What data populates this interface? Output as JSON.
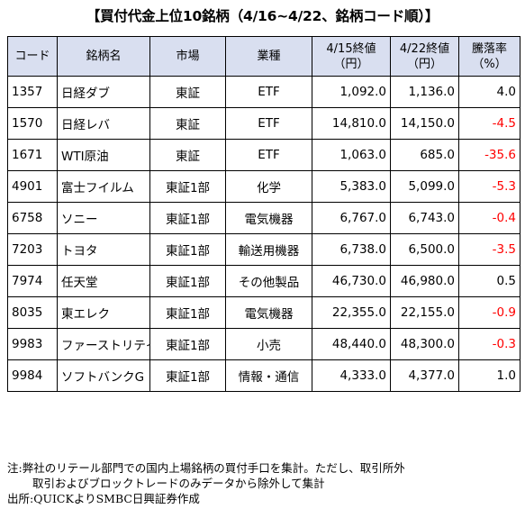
{
  "title": "【買付代金上位10銘柄（4/16~4/22、銘柄コード順）】",
  "headers": {
    "code": "コード",
    "name": "銘柄名",
    "market": "市場",
    "industry": "業種",
    "close_0415_line1": "4/15終値",
    "close_0415_line2": "（円）",
    "close_0422_line1": "4/22終値",
    "close_0422_line2": "（円）",
    "change_line1": "騰落率",
    "change_line2": "（%）"
  },
  "rows": [
    {
      "code": "1357",
      "name": "日経ダブ",
      "market": "東証",
      "industry": "ETF",
      "close_0415": "1,092.0",
      "close_0422": "1,136.0",
      "change": "4.0",
      "negative": false
    },
    {
      "code": "1570",
      "name": "日経レバ",
      "market": "東証",
      "industry": "ETF",
      "close_0415": "14,810.0",
      "close_0422": "14,150.0",
      "change": "-4.5",
      "negative": true
    },
    {
      "code": "1671",
      "name": "WTI原油",
      "market": "東証",
      "industry": "ETF",
      "close_0415": "1,063.0",
      "close_0422": "685.0",
      "change": "-35.6",
      "negative": true
    },
    {
      "code": "4901",
      "name": "富士フイルム",
      "market": "東証1部",
      "industry": "化学",
      "close_0415": "5,383.0",
      "close_0422": "5,099.0",
      "change": "-5.3",
      "negative": true
    },
    {
      "code": "6758",
      "name": "ソニー",
      "market": "東証1部",
      "industry": "電気機器",
      "close_0415": "6,767.0",
      "close_0422": "6,743.0",
      "change": "-0.4",
      "negative": true
    },
    {
      "code": "7203",
      "name": "トヨタ",
      "market": "東証1部",
      "industry": "輸送用機器",
      "close_0415": "6,738.0",
      "close_0422": "6,500.0",
      "change": "-3.5",
      "negative": true
    },
    {
      "code": "7974",
      "name": "任天堂",
      "market": "東証1部",
      "industry": "その他製品",
      "close_0415": "46,730.0",
      "close_0422": "46,980.0",
      "change": "0.5",
      "negative": false
    },
    {
      "code": "8035",
      "name": "東エレク",
      "market": "東証1部",
      "industry": "電気機器",
      "close_0415": "22,355.0",
      "close_0422": "22,155.0",
      "change": "-0.9",
      "negative": true
    },
    {
      "code": "9983",
      "name": "ファーストリテイ",
      "market": "東証1部",
      "industry": "小売",
      "close_0415": "48,440.0",
      "close_0422": "48,300.0",
      "change": "-0.3",
      "negative": true
    },
    {
      "code": "9984",
      "name": "ソフトバンクG",
      "market": "東証1部",
      "industry": "情報・通信",
      "close_0415": "4,333.0",
      "close_0422": "4,377.0",
      "change": "1.0",
      "negative": false
    }
  ],
  "notes": {
    "line1": "注:弊社のリテール部門での国内上場銘柄の買付手口を集計。ただし、取引所外",
    "line2": "取引およびブロックトレードのみデータから除外して集計",
    "line3": "出所:QUICKよりSMBC日興証券作成"
  },
  "colors": {
    "header_bg": "#d9dff0",
    "negative": "#ff0000"
  }
}
